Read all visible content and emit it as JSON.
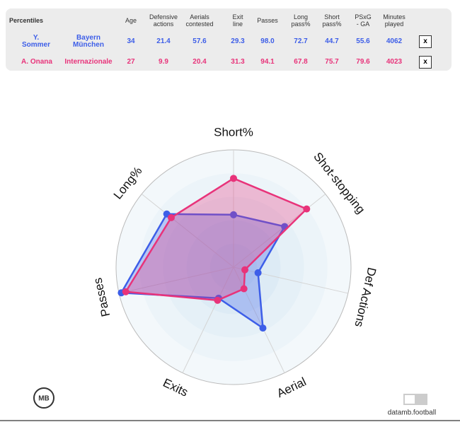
{
  "table": {
    "header": [
      "Percentiles",
      "Age",
      "Defensive actions",
      "Aerials contested",
      "Exit line",
      "Passes",
      "Long pass%",
      "Short pass%",
      "PSxG - GA",
      "Minutes played"
    ],
    "rows": [
      {
        "player": "Y. Sommer",
        "team": "Bayern München",
        "values": [
          "34",
          "21.4",
          "57.6",
          "29.3",
          "98.0",
          "72.7",
          "44.7",
          "55.6",
          "4062"
        ],
        "remove": "x",
        "color": "#3d5ee8"
      },
      {
        "player": "A. Onana",
        "team": "Internazionale",
        "values": [
          "27",
          "9.9",
          "20.4",
          "31.3",
          "94.1",
          "67.8",
          "75.7",
          "79.6",
          "4023"
        ],
        "remove": "x",
        "color": "#e8337a"
      }
    ]
  },
  "chart_data": {
    "type": "radar",
    "axes": [
      "Short%",
      "Shot-stopping",
      "Def Actions",
      "Aerial",
      "Exits",
      "Passes",
      "Long%"
    ],
    "rlim": [
      0,
      100
    ],
    "series": [
      {
        "color": "#3d5ee8",
        "values": [
          44.7,
          55.6,
          21.4,
          57.6,
          29.3,
          98.0,
          72.7
        ]
      },
      {
        "color": "#e8337a",
        "values": [
          75.7,
          79.6,
          9.9,
          20.4,
          31.3,
          94.1,
          67.8
        ]
      }
    ]
  },
  "footer": {
    "logo": "MB",
    "brand": "datamb.football"
  }
}
